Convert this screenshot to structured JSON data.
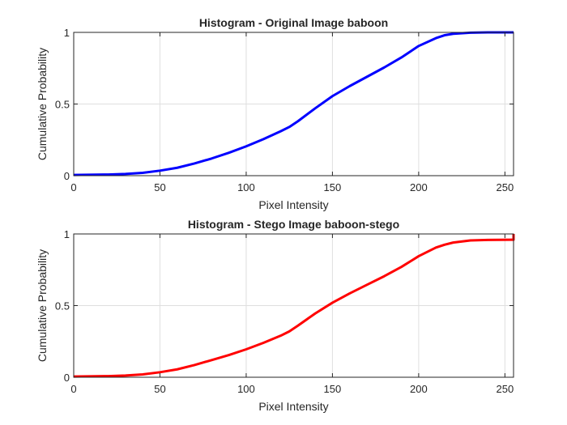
{
  "chart_data": [
    {
      "type": "line",
      "title": "Histogram - Original Image baboon",
      "xlabel": "Pixel Intensity",
      "ylabel": "Cumulative Probability",
      "xlim": [
        0,
        255
      ],
      "ylim": [
        0,
        1
      ],
      "xticks": [
        0,
        50,
        100,
        150,
        200,
        250
      ],
      "yticks": [
        0,
        0.5,
        1
      ],
      "xtick_labels": [
        "0",
        "50",
        "100",
        "150",
        "200",
        "250"
      ],
      "ytick_labels": [
        "0",
        "0.5",
        "1"
      ],
      "grid": true,
      "series": [
        {
          "color": "#0000ff",
          "x": [
            0,
            20,
            30,
            40,
            50,
            60,
            70,
            80,
            90,
            100,
            110,
            120,
            125,
            130,
            140,
            150,
            160,
            170,
            180,
            190,
            200,
            210,
            215,
            220,
            230,
            240,
            255
          ],
          "y": [
            0.005,
            0.008,
            0.012,
            0.02,
            0.035,
            0.055,
            0.085,
            0.12,
            0.16,
            0.205,
            0.255,
            0.31,
            0.34,
            0.38,
            0.47,
            0.555,
            0.625,
            0.69,
            0.755,
            0.825,
            0.905,
            0.96,
            0.98,
            0.99,
            0.998,
            1.0,
            1.0
          ]
        }
      ]
    },
    {
      "type": "line",
      "title": "Histogram - Stego Image baboon-stego",
      "xlabel": "Pixel Intensity",
      "ylabel": "Cumulative Probability",
      "xlim": [
        0,
        255
      ],
      "ylim": [
        0,
        1
      ],
      "xticks": [
        0,
        50,
        100,
        150,
        200,
        250
      ],
      "yticks": [
        0,
        0.5,
        1
      ],
      "xtick_labels": [
        "0",
        "50",
        "100",
        "150",
        "200",
        "250"
      ],
      "ytick_labels": [
        "0",
        "0.5",
        "1"
      ],
      "grid": true,
      "series": [
        {
          "color": "#ff0000",
          "x": [
            0,
            20,
            30,
            40,
            50,
            60,
            70,
            80,
            90,
            100,
            110,
            120,
            125,
            130,
            140,
            150,
            160,
            170,
            180,
            190,
            200,
            210,
            215,
            220,
            230,
            240,
            254,
            255,
            255
          ],
          "y": [
            0.005,
            0.008,
            0.012,
            0.02,
            0.035,
            0.055,
            0.085,
            0.12,
            0.155,
            0.195,
            0.24,
            0.29,
            0.32,
            0.36,
            0.445,
            0.52,
            0.585,
            0.645,
            0.705,
            0.77,
            0.845,
            0.905,
            0.925,
            0.94,
            0.955,
            0.958,
            0.96,
            0.96,
            1.0
          ]
        }
      ]
    }
  ]
}
